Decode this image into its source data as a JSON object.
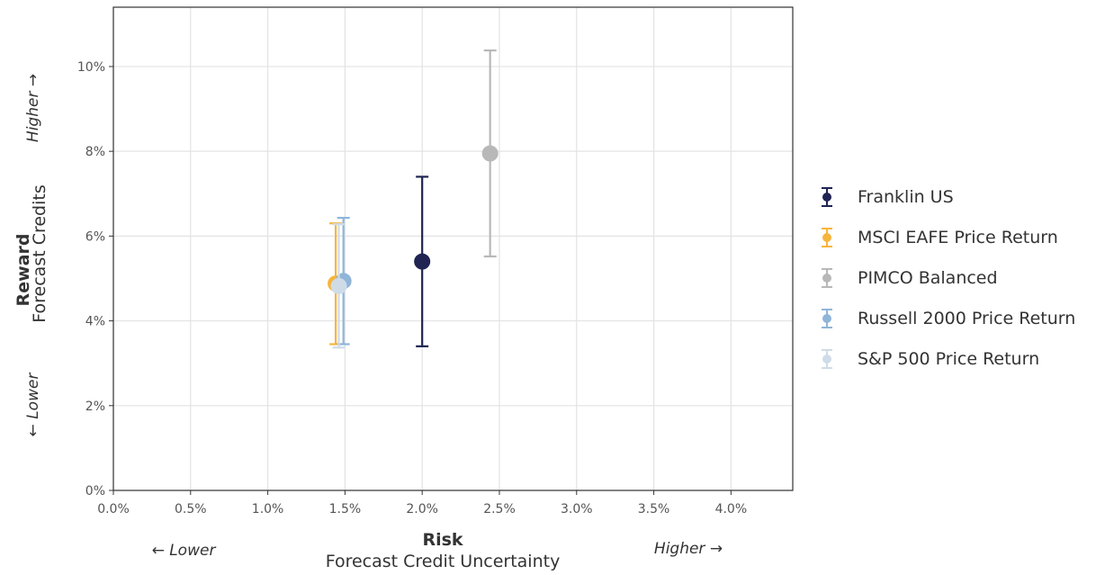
{
  "chart_data": {
    "type": "scatter",
    "xlabel_bold": "Risk",
    "xlabel": "Forecast Credit Uncertainty",
    "ylabel_bold": "Reward",
    "ylabel": "Forecast Credits",
    "x_low_label": "← Lower",
    "x_high_label": "Higher →",
    "y_low_label": "← Lower",
    "y_high_label": "Higher →",
    "xlim": [
      0,
      4.4
    ],
    "ylim": [
      0,
      11.4
    ],
    "x_ticks": [
      0,
      0.5,
      1.0,
      1.5,
      2.0,
      2.5,
      3.0,
      3.5,
      4.0
    ],
    "x_tick_labels": [
      "0.0%",
      "0.5%",
      "1.0%",
      "1.5%",
      "2.0%",
      "2.5%",
      "3.0%",
      "3.5%",
      "4.0%"
    ],
    "y_ticks": [
      0,
      2,
      4,
      6,
      8,
      10
    ],
    "y_tick_labels": [
      "0%",
      "2%",
      "4%",
      "6%",
      "8%",
      "10%"
    ],
    "grid": true,
    "legend_position": "right",
    "series": [
      {
        "name": "Franklin US",
        "color": "#1f2452",
        "x": 2.0,
        "y": 5.4,
        "y_low": 3.4,
        "y_high": 7.4
      },
      {
        "name": "MSCI EAFE Price Return",
        "color": "#f6b53c",
        "x": 1.44,
        "y": 4.88,
        "y_low": 3.45,
        "y_high": 6.3
      },
      {
        "name": "PIMCO Balanced",
        "color": "#b8b8b8",
        "x": 2.44,
        "y": 7.95,
        "y_low": 5.52,
        "y_high": 10.38
      },
      {
        "name": "Russell 2000 Price Return",
        "color": "#8fb5d9",
        "x": 1.49,
        "y": 4.94,
        "y_low": 3.45,
        "y_high": 6.43
      },
      {
        "name": "S&P 500 Price Return",
        "color": "#cfdce8",
        "x": 1.46,
        "y": 4.82,
        "y_low": 3.37,
        "y_high": 6.28
      }
    ]
  }
}
